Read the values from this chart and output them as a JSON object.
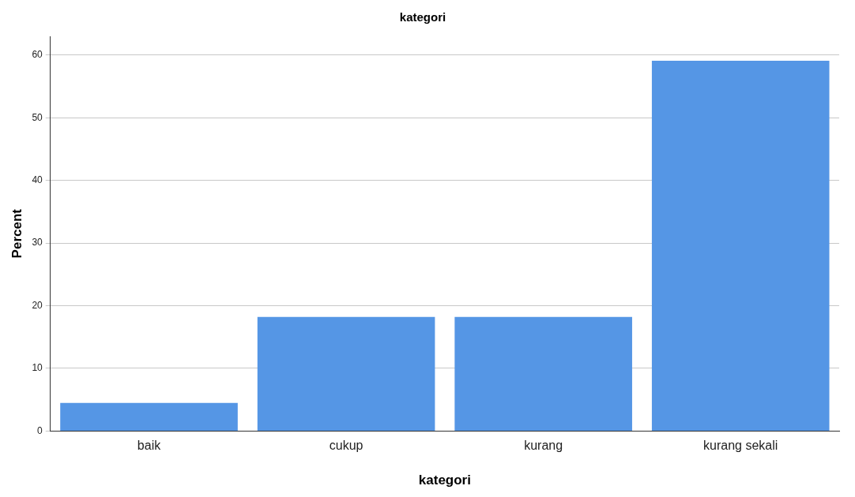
{
  "chart_data": {
    "type": "bar",
    "title": "kategori",
    "xlabel": "kategori",
    "ylabel": "Percent",
    "categories": [
      "baik",
      "cukup",
      "kurang",
      "kurang sekali"
    ],
    "values": [
      4.5,
      18.2,
      18.2,
      59.1
    ],
    "color": "#5596e5",
    "ylim": [
      0,
      63
    ],
    "yticks": [
      0,
      10,
      20,
      30,
      40,
      50,
      60
    ],
    "grid": "y"
  }
}
